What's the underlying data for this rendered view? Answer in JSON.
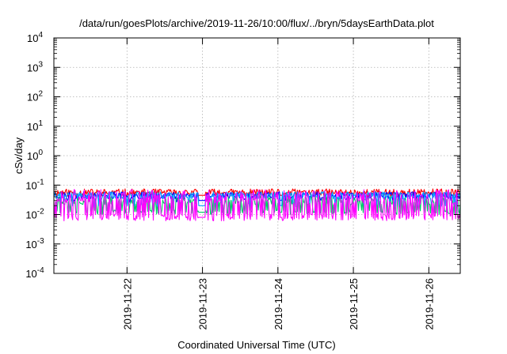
{
  "chart_data": {
    "type": "line",
    "title": "/data/run/goesPlots/archive/2019-11-26/10:00/flux/../bryn/5daysEarthData.plot",
    "xlabel": "Coordinated Universal Time (UTC)",
    "ylabel": "cSv/day",
    "y_scale": "log",
    "ylim": [
      0.0001,
      10000
    ],
    "y_ticks": [
      {
        "base": "10",
        "exp": "-4"
      },
      {
        "base": "10",
        "exp": "-3"
      },
      {
        "base": "10",
        "exp": "-2"
      },
      {
        "base": "10",
        "exp": "-1"
      },
      {
        "base": "10",
        "exp": "0"
      },
      {
        "base": "10",
        "exp": "1"
      },
      {
        "base": "10",
        "exp": "2"
      },
      {
        "base": "10",
        "exp": "3"
      },
      {
        "base": "10",
        "exp": "4"
      }
    ],
    "xlim": [
      "2019-11-21T00:44",
      "2019-11-26T10:00"
    ],
    "x_ticks": [
      "2019-11-22",
      "2019-11-23",
      "2019-11-24",
      "2019-11-25",
      "2019-11-26"
    ],
    "grid": true,
    "series": [
      {
        "color": "#ff0000",
        "base": 0.055,
        "spread": 0.13,
        "dip": 0.045,
        "seed": 11,
        "dipFrac": 0.0
      },
      {
        "color": "#0000ff",
        "base": 0.045,
        "spread": 0.12,
        "dip": 0.03,
        "seed": 23,
        "dipFrac": 0.08
      },
      {
        "color": "#00cc66",
        "base": 0.03,
        "spread": 0.15,
        "dip": 0.012,
        "seed": 37,
        "dipFrac": 0.35
      },
      {
        "color": "#00a0ff",
        "base": 0.045,
        "spread": 0.12,
        "dip": 0.02,
        "seed": 41,
        "dipFrac": 0.12
      },
      {
        "color": "#ff00ff",
        "base": 0.008,
        "spread": 0.12,
        "spike": 0.045,
        "seed": 53,
        "spikeFrac": 0.55
      }
    ]
  }
}
